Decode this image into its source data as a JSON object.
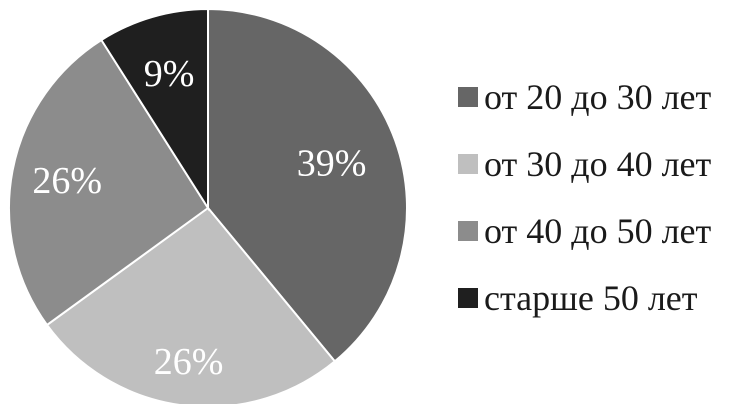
{
  "chart_data": {
    "type": "pie",
    "title": "",
    "categories": [
      "от 20 до 30 лет",
      "от 30 до 40 лет",
      "от 40 до 50 лет",
      "старше 50 лет"
    ],
    "values": [
      39,
      26,
      26,
      9
    ],
    "labels": [
      "39%",
      "26%",
      "26%",
      "9%"
    ],
    "colors": [
      "#666666",
      "#bfbfbf",
      "#8c8c8c",
      "#1f1f1f"
    ],
    "legend_position": "right",
    "start_angle": "12 o'clock",
    "direction": "clockwise",
    "slice_border_color": "#ffffff"
  },
  "legend": {
    "items": [
      {
        "label": "от 20 до 30 лет",
        "color": "#666666"
      },
      {
        "label": "от 30 до 40 лет",
        "color": "#bfbfbf"
      },
      {
        "label": "от 40 до 50 лет",
        "color": "#8c8c8c"
      },
      {
        "label": "старше 50 лет",
        "color": "#1f1f1f"
      }
    ]
  }
}
